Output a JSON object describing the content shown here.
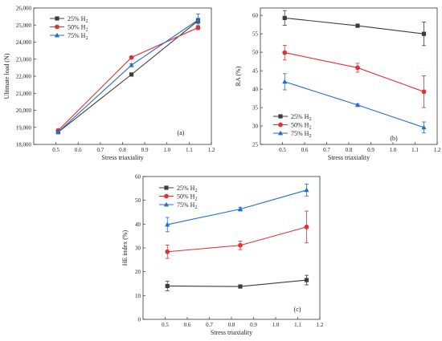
{
  "colors": {
    "s25": "#3c3c3c",
    "s50": "#e03232",
    "s75": "#1f6fcf"
  },
  "chart_data": [
    {
      "type": "line",
      "panel_label": "(a)",
      "xlabel": "Stress triaxiality",
      "ylabel": "Ultimate load (N)",
      "xlim": [
        0.4,
        1.2
      ],
      "ylim": [
        18000,
        26000
      ],
      "xticks": [
        "0.5",
        "0.6",
        "0.7",
        "0.8",
        "0.9",
        "1.0",
        "1.1",
        "1.2"
      ],
      "yticks": [
        "18,000",
        "19,000",
        "20,000",
        "21,000",
        "22,000",
        "23,000",
        "24,000",
        "25,000",
        "26,000"
      ],
      "legend": "top-left",
      "x": [
        0.51,
        0.84,
        1.14
      ],
      "series": [
        {
          "name": "25% H2",
          "name_main": "25% H",
          "name_sub": "2",
          "marker": "square",
          "color_key": "s25",
          "values": [
            18720,
            22100,
            25250
          ],
          "err": [
            80,
            0,
            150
          ]
        },
        {
          "name": "50% H2",
          "name_main": "50% H",
          "name_sub": "2",
          "marker": "circle",
          "color_key": "s50",
          "values": [
            18820,
            23100,
            24850
          ],
          "err": [
            70,
            0,
            120
          ]
        },
        {
          "name": "75% H2",
          "name_main": "75% H",
          "name_sub": "2",
          "marker": "triangle",
          "color_key": "s75",
          "values": [
            18730,
            22650,
            25300
          ],
          "err": [
            60,
            80,
            350
          ]
        }
      ]
    },
    {
      "type": "line",
      "panel_label": "(b)",
      "xlabel": "Stress triaxiality",
      "ylabel": "RA (%)",
      "xlim": [
        0.4,
        1.2
      ],
      "ylim": [
        25,
        62
      ],
      "xticks": [
        "0.5",
        "0.6",
        "0.7",
        "0.8",
        "0.9",
        "1.0",
        "1.1",
        "1.2"
      ],
      "yticks": [
        "25",
        "30",
        "35",
        "40",
        "45",
        "50",
        "55",
        "60"
      ],
      "legend": "bottom-right",
      "x": [
        0.51,
        0.84,
        1.14
      ],
      "series": [
        {
          "name": "25% H2",
          "name_main": "25% H",
          "name_sub": "2",
          "marker": "square",
          "color_key": "s25",
          "values": [
            59.3,
            57.2,
            55.0
          ],
          "err": [
            2.0,
            0.3,
            3.2
          ]
        },
        {
          "name": "50% H2",
          "name_main": "50% H",
          "name_sub": "2",
          "marker": "circle",
          "color_key": "s50",
          "values": [
            49.9,
            45.8,
            39.3
          ],
          "err": [
            2.0,
            1.2,
            4.3
          ]
        },
        {
          "name": "75% H2",
          "name_main": "75% H",
          "name_sub": "2",
          "marker": "triangle",
          "color_key": "s75",
          "values": [
            42.0,
            35.7,
            29.6
          ],
          "err": [
            2.2,
            0.3,
            1.5
          ]
        }
      ]
    },
    {
      "type": "line",
      "panel_label": "(c)",
      "xlabel": "Stress triaxiality",
      "ylabel": "HE index (%)",
      "xlim": [
        0.4,
        1.2
      ],
      "ylim": [
        0,
        60
      ],
      "xticks": [
        "0.5",
        "0.6",
        "0.7",
        "0.8",
        "0.9",
        "1.0",
        "1.1",
        "1.2"
      ],
      "yticks": [
        "0",
        "10",
        "20",
        "30",
        "40",
        "50",
        "60"
      ],
      "legend": "top-left",
      "x": [
        0.51,
        0.84,
        1.14
      ],
      "series": [
        {
          "name": "25% H2",
          "name_main": "25% H",
          "name_sub": "2",
          "marker": "square",
          "color_key": "s25",
          "values": [
            14.0,
            13.8,
            16.5
          ],
          "err": [
            2.0,
            0.4,
            2.0
          ]
        },
        {
          "name": "50% H2",
          "name_main": "50% H",
          "name_sub": "2",
          "marker": "circle",
          "color_key": "s50",
          "values": [
            28.4,
            31.1,
            38.8
          ],
          "err": [
            2.8,
            1.8,
            6.7
          ]
        },
        {
          "name": "75% H2",
          "name_main": "75% H",
          "name_sub": "2",
          "marker": "triangle",
          "color_key": "s75",
          "values": [
            39.8,
            46.3,
            54.3
          ],
          "err": [
            3.0,
            0.8,
            2.5
          ]
        }
      ]
    }
  ]
}
